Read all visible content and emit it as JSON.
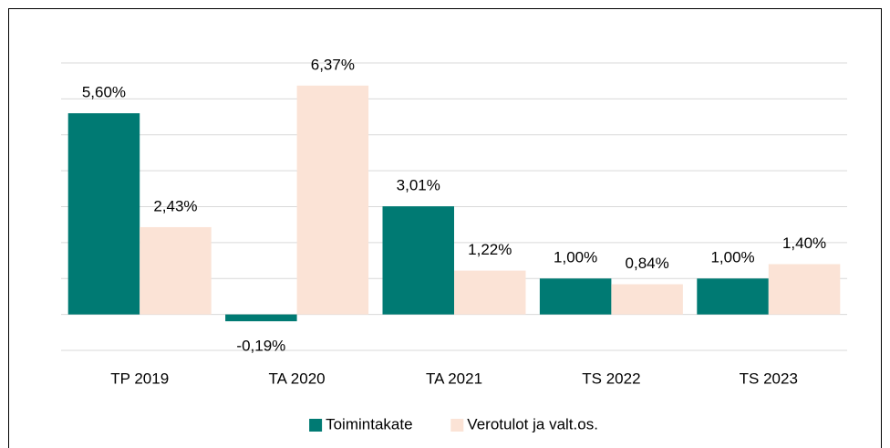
{
  "chart_data": {
    "type": "bar",
    "categories": [
      "TP 2019",
      "TA 2020",
      "TA 2021",
      "TS 2022",
      "TS 2023"
    ],
    "series": [
      {
        "name": "Toimintakate",
        "color": "#007a73",
        "values": [
          5.6,
          -0.19,
          3.01,
          1.0,
          1.0
        ],
        "value_labels": [
          "5,60%",
          "-0,19%",
          "3,01%",
          "1,00%",
          "1,00%"
        ]
      },
      {
        "name": "Verotulot ja valt.os.",
        "color": "#fbe3d6",
        "values": [
          2.43,
          6.37,
          1.22,
          0.84,
          1.4
        ],
        "value_labels": [
          "2,43%",
          "6,37%",
          "1,22%",
          "0,84%",
          "1,40%"
        ]
      }
    ],
    "ylim": [
      -1,
      7
    ],
    "yticks": [
      -1,
      0,
      1,
      2,
      3,
      4,
      5,
      6,
      7
    ],
    "grid": true,
    "legend": "bottom"
  }
}
